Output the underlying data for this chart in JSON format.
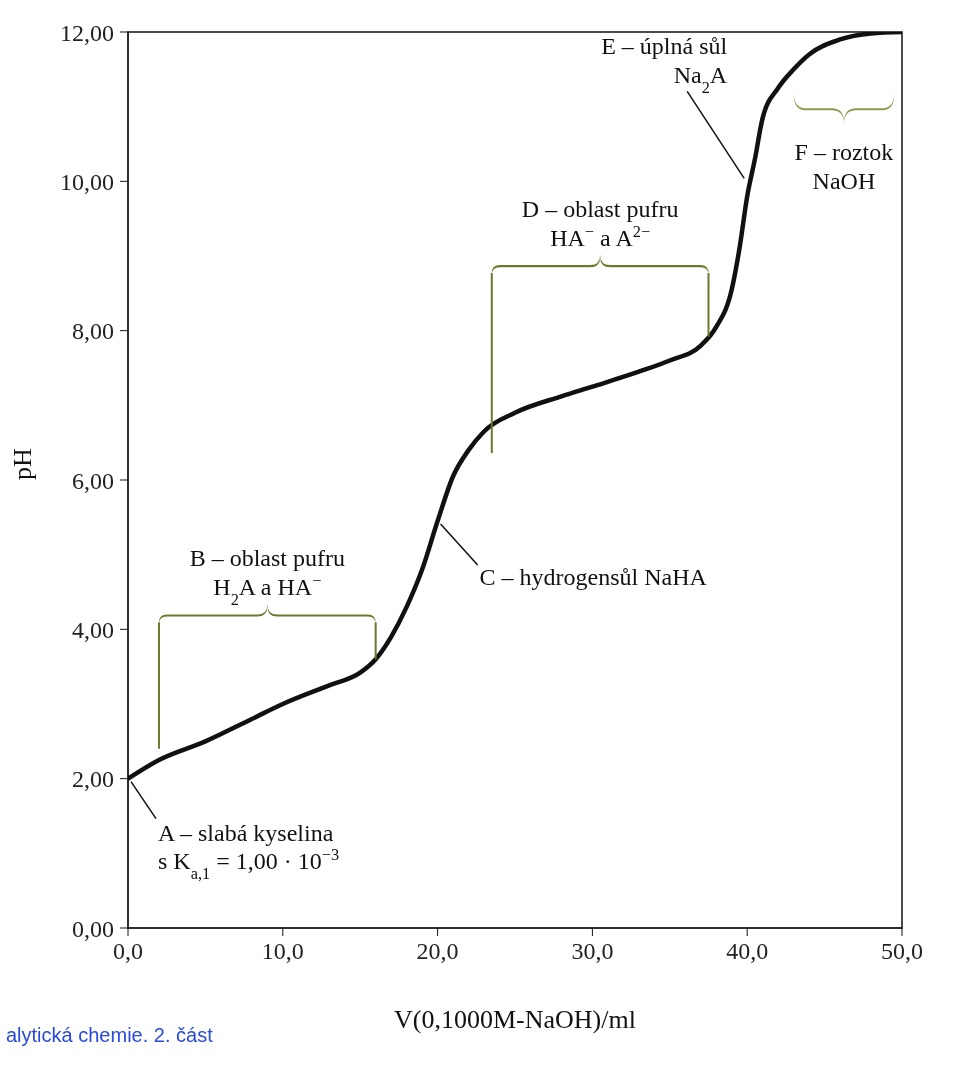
{
  "chart_data": {
    "type": "line",
    "xlabel": "V(0,1000M-NaOH)/ml",
    "ylabel": "pH",
    "x": [
      0,
      2,
      5,
      8,
      10,
      13,
      15,
      16,
      17,
      18,
      19,
      20,
      21,
      22,
      23,
      25,
      28,
      30,
      33,
      35,
      37,
      38,
      39,
      39.5,
      40,
      40.5,
      41,
      42,
      43,
      44,
      46,
      48,
      50
    ],
    "series": [
      {
        "color": "#111111",
        "values": [
          2.0,
          2.25,
          2.5,
          2.8,
          3.0,
          3.25,
          3.42,
          3.6,
          3.9,
          4.3,
          4.8,
          5.45,
          6.05,
          6.4,
          6.65,
          6.9,
          7.12,
          7.25,
          7.45,
          7.6,
          7.8,
          8.05,
          8.55,
          9.1,
          9.8,
          10.3,
          10.85,
          11.25,
          11.5,
          11.7,
          11.9,
          11.98,
          12.0
        ]
      }
    ],
    "xlim": [
      0,
      50
    ],
    "ylim": [
      0,
      12
    ],
    "xticks": [
      {
        "value": 0,
        "label": "0,0"
      },
      {
        "value": 10,
        "label": "10,0"
      },
      {
        "value": 20,
        "label": "20,0"
      },
      {
        "value": 30,
        "label": "30,0"
      },
      {
        "value": 40,
        "label": "40,0"
      },
      {
        "value": 50,
        "label": "50,0"
      }
    ],
    "yticks": [
      {
        "value": 0,
        "label": "0,00"
      },
      {
        "value": 2,
        "label": "2,00"
      },
      {
        "value": 4,
        "label": "4,00"
      },
      {
        "value": 6,
        "label": "6,00"
      },
      {
        "value": 8,
        "label": "8,00"
      },
      {
        "value": 10,
        "label": "10,00"
      },
      {
        "value": 12,
        "label": "12,00"
      }
    ],
    "grid": false,
    "legend": false,
    "marker": "none",
    "line_style": "solid",
    "annotations": [
      {
        "text": "A – slabá kyselina\ns K$_{a,1}$ = 1,00 · 10$^{−3}$",
        "x": 0,
        "y": 2
      },
      {
        "text": "C – hydrogensůl NaHA",
        "x": 20,
        "y": 5.45
      },
      "B – oblast pufru\nH$_{2}$A a HA$^{−}$",
      "D – oblast pufru\nHA$^{−}$ a A$^{2−}$",
      "F – roztok\nNaOH",
      {
        "text": "E – úplná sůl\nNa$_{2}$A",
        "x": 40,
        "y": 10
      },
      "alytická chemie. 2. část"
    ]
  }
}
